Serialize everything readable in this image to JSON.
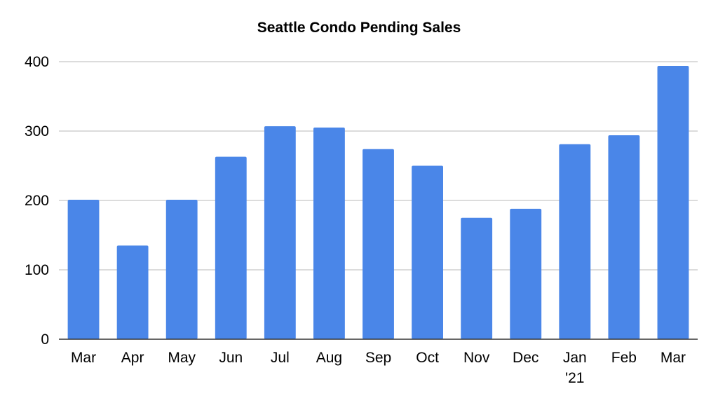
{
  "chart_data": {
    "type": "bar",
    "title": "Seattle Condo Pending Sales",
    "xlabel": "",
    "ylabel": "",
    "categories": [
      "Mar",
      "Apr",
      "May",
      "Jun",
      "Jul",
      "Aug",
      "Sep",
      "Oct",
      "Nov",
      "Dec",
      "Jan\n'21",
      "Feb",
      "Mar"
    ],
    "values": [
      201,
      135,
      201,
      263,
      307,
      305,
      274,
      250,
      175,
      188,
      281,
      294,
      394
    ],
    "ylim": [
      0,
      400
    ],
    "yticks": [
      0,
      100,
      200,
      300,
      400
    ],
    "grid": true,
    "legend": "none",
    "colors": {
      "bar": "#4a86e8"
    }
  }
}
